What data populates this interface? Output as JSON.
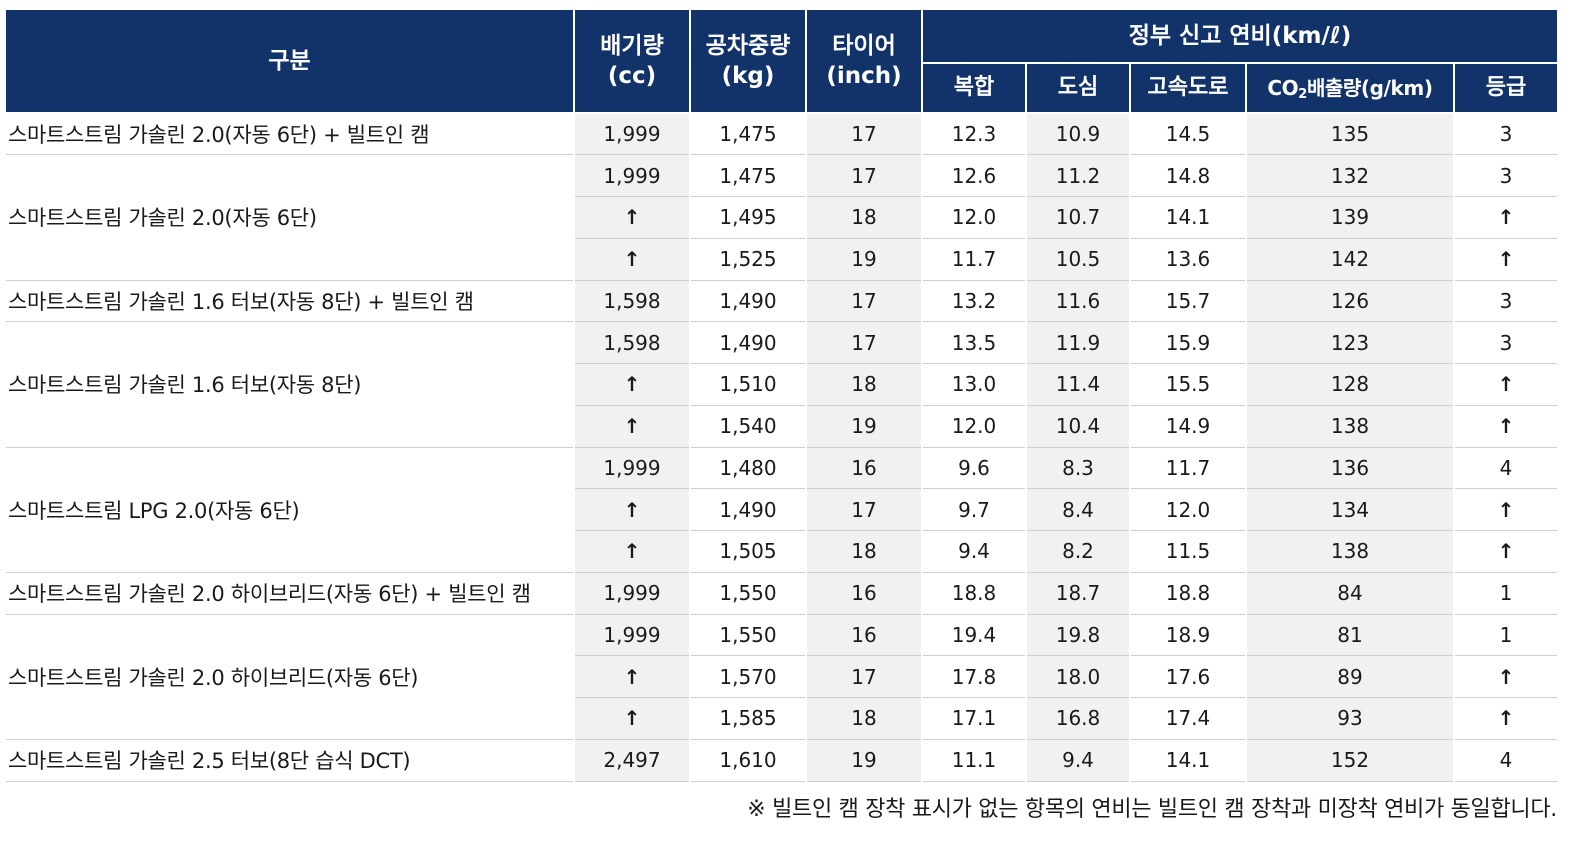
{
  "header": {
    "category": "구분",
    "displacement": "배기량\n(cc)",
    "curb_weight": "공차중량\n(kg)",
    "tire": "타이어\n(inch)",
    "fuel_group": "정부 신고 연비(km/ℓ)",
    "combined": "복합",
    "city": "도심",
    "highway": "고속도로",
    "co2_prefix": "CO",
    "co2_sub": "2",
    "co2_suffix": "배출량(g/km)",
    "grade": "등급"
  },
  "groups": [
    {
      "name": "스마트스트림 가솔린 2.0(자동 6단) + 빌트인 캠",
      "rows": [
        [
          "1,999",
          "1,475",
          "17",
          "12.3",
          "10.9",
          "14.5",
          "135",
          "3"
        ]
      ]
    },
    {
      "name": "스마트스트림 가솔린 2.0(자동 6단)",
      "rows": [
        [
          "1,999",
          "1,475",
          "17",
          "12.6",
          "11.2",
          "14.8",
          "132",
          "3"
        ],
        [
          "↑",
          "1,495",
          "18",
          "12.0",
          "10.7",
          "14.1",
          "139",
          "↑"
        ],
        [
          "↑",
          "1,525",
          "19",
          "11.7",
          "10.5",
          "13.6",
          "142",
          "↑"
        ]
      ]
    },
    {
      "name": "스마트스트림 가솔린 1.6 터보(자동 8단) + 빌트인 캠",
      "rows": [
        [
          "1,598",
          "1,490",
          "17",
          "13.2",
          "11.6",
          "15.7",
          "126",
          "3"
        ]
      ]
    },
    {
      "name": "스마트스트림 가솔린 1.6 터보(자동 8단)",
      "rows": [
        [
          "1,598",
          "1,490",
          "17",
          "13.5",
          "11.9",
          "15.9",
          "123",
          "3"
        ],
        [
          "↑",
          "1,510",
          "18",
          "13.0",
          "11.4",
          "15.5",
          "128",
          "↑"
        ],
        [
          "↑",
          "1,540",
          "19",
          "12.0",
          "10.4",
          "14.9",
          "138",
          "↑"
        ]
      ]
    },
    {
      "name": "스마트스트림 LPG 2.0(자동 6단)",
      "rows": [
        [
          "1,999",
          "1,480",
          "16",
          "9.6",
          "8.3",
          "11.7",
          "136",
          "4"
        ],
        [
          "↑",
          "1,490",
          "17",
          "9.7",
          "8.4",
          "12.0",
          "134",
          "↑"
        ],
        [
          "↑",
          "1,505",
          "18",
          "9.4",
          "8.2",
          "11.5",
          "138",
          "↑"
        ]
      ]
    },
    {
      "name": "스마트스트림 가솔린 2.0 하이브리드(자동 6단) + 빌트인 캠",
      "rows": [
        [
          "1,999",
          "1,550",
          "16",
          "18.8",
          "18.7",
          "18.8",
          "84",
          "1"
        ]
      ]
    },
    {
      "name": "스마트스트림 가솔린 2.0 하이브리드(자동 6단)",
      "rows": [
        [
          "1,999",
          "1,550",
          "16",
          "19.4",
          "19.8",
          "18.9",
          "81",
          "1"
        ],
        [
          "↑",
          "1,570",
          "17",
          "17.8",
          "18.0",
          "17.6",
          "89",
          "↑"
        ],
        [
          "↑",
          "1,585",
          "18",
          "17.1",
          "16.8",
          "17.4",
          "93",
          "↑"
        ]
      ]
    },
    {
      "name": "스마트스트림 가솔린 2.5 터보(8단 습식 DCT)",
      "rows": [
        [
          "2,497",
          "1,610",
          "19",
          "11.1",
          "9.4",
          "14.1",
          "152",
          "4"
        ]
      ]
    }
  ],
  "footnote": "※ 빌트인 캠 장착 표시가 없는 항목의 연비는 빌트인 캠 장착과 미장착 연비가 동일합니다.",
  "colors": {
    "header_bg": "#123369",
    "header_text": "#ffffff",
    "cell_shade": "#f1f1f1",
    "row_line": "#cfcfcf"
  }
}
